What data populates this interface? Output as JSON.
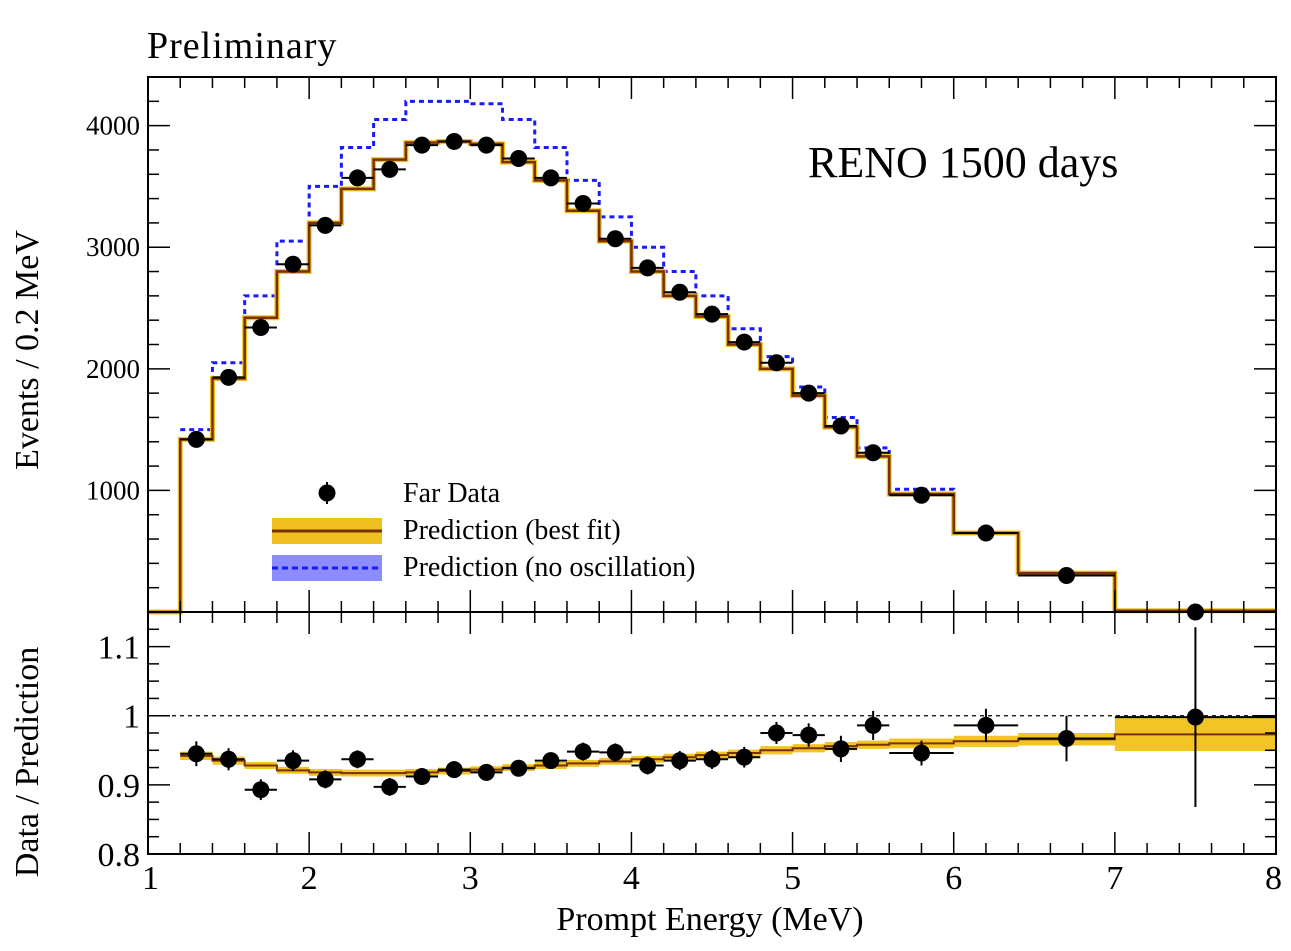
{
  "chart_data": [
    {
      "type": "histogram",
      "title": "RENO 1500 days",
      "header": "Preliminary",
      "xlabel": "Prompt Energy (MeV)",
      "ylabel": "Events / 0.2 MeV",
      "xlim": [
        1,
        8
      ],
      "ylim": [
        0,
        4400
      ],
      "y_ticks": [
        1000,
        2000,
        3000,
        4000
      ],
      "y_tick_labels": [
        "1000",
        "2000",
        "3000",
        "4000"
      ],
      "bin_edges": [
        1.2,
        1.4,
        1.6,
        1.8,
        2.0,
        2.2,
        2.4,
        2.6,
        2.8,
        3.0,
        3.2,
        3.4,
        3.6,
        3.8,
        4.0,
        4.2,
        4.4,
        4.6,
        4.8,
        5.0,
        5.2,
        5.4,
        5.6,
        6.0,
        6.4,
        7.0,
        8.0
      ],
      "series": [
        {
          "name": "Far Data",
          "style": "points",
          "x": [
            1.3,
            1.5,
            1.7,
            1.9,
            2.1,
            2.3,
            2.5,
            2.7,
            2.9,
            3.1,
            3.3,
            3.5,
            3.7,
            3.9,
            4.1,
            4.3,
            4.5,
            4.7,
            4.9,
            5.1,
            5.3,
            5.5,
            5.8,
            6.2,
            6.7,
            7.5
          ],
          "values": [
            1420,
            1930,
            2340,
            2860,
            3180,
            3570,
            3640,
            3840,
            3870,
            3840,
            3730,
            3570,
            3360,
            3070,
            2830,
            2630,
            2450,
            2220,
            2050,
            1800,
            1530,
            1310,
            960,
            650,
            300,
            0
          ]
        },
        {
          "name": "Prediction (best fit)",
          "style": "step-solid",
          "color": "#7a3000",
          "band_color": "#f0c020",
          "values": [
            1420,
            1920,
            2420,
            2800,
            3200,
            3480,
            3720,
            3860,
            3870,
            3850,
            3700,
            3550,
            3300,
            3050,
            2800,
            2600,
            2430,
            2200,
            2000,
            1780,
            1520,
            1280,
            970,
            650,
            320,
            10
          ]
        },
        {
          "name": "Prediction (no oscillation)",
          "style": "step-dashed",
          "color": "#1a1aff",
          "band_color": "#8c8cff",
          "values": [
            1500,
            2050,
            2600,
            3050,
            3500,
            3820,
            4050,
            4200,
            4200,
            4180,
            4050,
            3820,
            3550,
            3250,
            3000,
            2800,
            2600,
            2330,
            2100,
            1850,
            1600,
            1350,
            1010,
            650,
            320,
            10
          ]
        }
      ],
      "legend_position": "lower-left"
    },
    {
      "type": "ratio",
      "ylabel": "Data / Prediction",
      "xlabel": "Prompt Energy (MeV)",
      "xlim": [
        1,
        8
      ],
      "ylim": [
        0.8,
        1.15
      ],
      "x_ticks": [
        1,
        2,
        3,
        4,
        5,
        6,
        7,
        8
      ],
      "x_tick_labels": [
        "1",
        "2",
        "3",
        "4",
        "5",
        "6",
        "7",
        "8"
      ],
      "y_ticks": [
        0.8,
        0.9,
        1,
        1.1
      ],
      "y_tick_labels": [
        "0.8",
        "0.9",
        "1",
        "1.1"
      ],
      "reference_line": 1,
      "points": {
        "x": [
          1.3,
          1.5,
          1.7,
          1.9,
          2.1,
          2.3,
          2.5,
          2.7,
          2.9,
          3.1,
          3.3,
          3.5,
          3.7,
          3.9,
          4.1,
          4.3,
          4.5,
          4.7,
          4.9,
          5.1,
          5.3,
          5.5,
          5.8,
          6.2,
          6.7,
          7.5
        ],
        "values": [
          0.945,
          0.937,
          0.893,
          0.935,
          0.908,
          0.937,
          0.897,
          0.912,
          0.922,
          0.918,
          0.924,
          0.935,
          0.948,
          0.947,
          0.928,
          0.935,
          0.937,
          0.94,
          0.975,
          0.972,
          0.952,
          0.986,
          0.946,
          0.986,
          0.967,
          0.998
        ],
        "errors": [
          0.018,
          0.016,
          0.015,
          0.015,
          0.013,
          0.013,
          0.013,
          0.012,
          0.012,
          0.012,
          0.012,
          0.012,
          0.013,
          0.013,
          0.013,
          0.014,
          0.014,
          0.015,
          0.016,
          0.017,
          0.019,
          0.021,
          0.018,
          0.024,
          0.033,
          0.13
        ]
      },
      "best_fit_ratio": {
        "x": [
          1.2,
          1.4,
          1.6,
          1.8,
          2.0,
          2.2,
          2.4,
          2.6,
          2.8,
          3.0,
          3.2,
          3.4,
          3.6,
          3.8,
          4.0,
          4.2,
          4.4,
          4.6,
          4.8,
          5.0,
          5.2,
          5.4,
          5.6,
          6.0,
          6.4,
          7.0,
          8.0
        ],
        "values": [
          0.942,
          0.935,
          0.928,
          0.921,
          0.918,
          0.917,
          0.917,
          0.918,
          0.92,
          0.922,
          0.925,
          0.928,
          0.931,
          0.934,
          0.937,
          0.94,
          0.943,
          0.946,
          0.95,
          0.953,
          0.956,
          0.958,
          0.96,
          0.963,
          0.966,
          0.973,
          0.975
        ],
        "band_half_width": [
          0.006,
          0.006,
          0.005,
          0.005,
          0.005,
          0.005,
          0.005,
          0.005,
          0.005,
          0.005,
          0.005,
          0.005,
          0.005,
          0.005,
          0.005,
          0.005,
          0.005,
          0.005,
          0.006,
          0.006,
          0.006,
          0.006,
          0.007,
          0.008,
          0.009,
          0.024,
          0.025
        ]
      }
    }
  ]
}
